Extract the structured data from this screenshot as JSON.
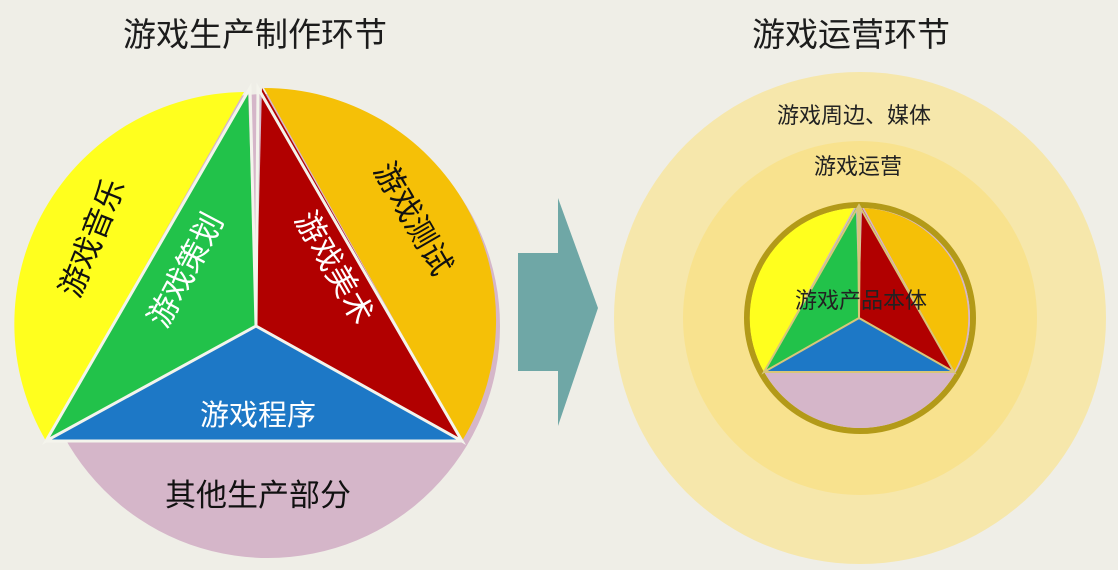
{
  "production": {
    "title": "游戏生产制作环节",
    "segments": {
      "music": "游戏音乐",
      "planning": "游戏策划",
      "art": "游戏美术",
      "testing": "游戏测试",
      "program": "游戏程序",
      "other": "其他生产部分"
    }
  },
  "operation": {
    "title": "游戏运营环节",
    "rings": {
      "outer": "游戏周边、媒体",
      "middle": "游戏运营",
      "core": "游戏产品本体"
    }
  },
  "colors": {
    "background": "#efeee7",
    "yellow": "#ffff1e",
    "green": "#22c24a",
    "red": "#b10000",
    "orange": "#f5c007",
    "blue": "#1d78c6",
    "pink": "#d5b6c9",
    "arrow": "#6fa7a6",
    "ring_outer": "#f6e7ab",
    "ring_middle": "#f8e28e",
    "core_border": "#b39a18"
  }
}
